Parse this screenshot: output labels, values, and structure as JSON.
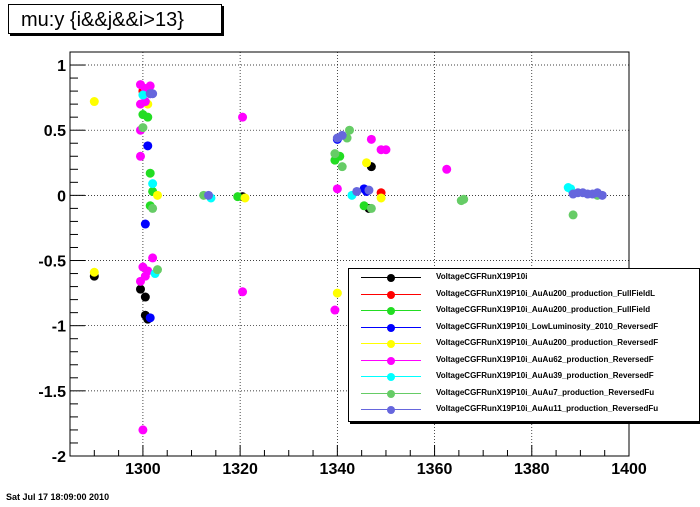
{
  "chart_data": {
    "type": "scatter",
    "title": "mu:y  {i&&j&&i>13}",
    "xlabel": "",
    "ylabel": "",
    "xlim": [
      1285,
      1400
    ],
    "ylim": [
      -2,
      1.1
    ],
    "grid": true,
    "legend_position": "right",
    "x_ticks": [
      {
        "value": 1300,
        "label": "1300"
      },
      {
        "value": 1320,
        "label": "1320"
      },
      {
        "value": 1340,
        "label": "1340"
      },
      {
        "value": 1360,
        "label": "1360"
      },
      {
        "value": 1380,
        "label": "1380"
      },
      {
        "value": 1400,
        "label": "1400"
      }
    ],
    "y_ticks": [
      {
        "value": 1,
        "label": "1"
      },
      {
        "value": 0.5,
        "label": "0.5"
      },
      {
        "value": 0,
        "label": "0"
      },
      {
        "value": -0.5,
        "label": "-0.5"
      },
      {
        "value": -1,
        "label": "-1"
      },
      {
        "value": -1.5,
        "label": "-1.5"
      },
      {
        "value": -2,
        "label": "-2"
      }
    ],
    "series": [
      {
        "name": "VoltageCGFRunX19P10i",
        "color": "#000000",
        "points": [
          [
            1290,
            -0.62
          ],
          [
            1299.5,
            -0.72
          ],
          [
            1300.5,
            -0.78
          ],
          [
            1301,
            -0.95
          ],
          [
            1300.5,
            -0.92
          ],
          [
            1320.5,
            -0.01
          ],
          [
            1347,
            0.22
          ],
          [
            1346.5,
            -0.1
          ]
        ]
      },
      {
        "name": "VoltageCGFRunX19P10i_AuAu200_production_FullFieldL",
        "color": "#ff0000",
        "points": [
          [
            1300,
            0.8
          ],
          [
            1349,
            0.02
          ]
        ]
      },
      {
        "name": "VoltageCGFRunX19P10i_AuAu200_production_FullField",
        "color": "#22dd22",
        "points": [
          [
            1301.5,
            0.17
          ],
          [
            1302,
            0.03
          ],
          [
            1300,
            0.62
          ],
          [
            1301,
            0.6
          ],
          [
            1301.5,
            -0.08
          ],
          [
            1319.5,
            -0.01
          ],
          [
            1339.5,
            0.27
          ],
          [
            1340.5,
            0.3
          ],
          [
            1345.5,
            -0.08
          ]
        ]
      },
      {
        "name": "VoltageCGFRunX19P10i_LowLuminosity_2010_ReversedF",
        "color": "#0000ff",
        "points": [
          [
            1301,
            0.38
          ],
          [
            1301.5,
            -0.94
          ],
          [
            1300.5,
            -0.22
          ],
          [
            1340,
            0.43
          ],
          [
            1346,
            0.03
          ],
          [
            1345.5,
            0.05
          ]
        ]
      },
      {
        "name": "VoltageCGFRunX19P10i_AuAu200_production_ReversedF",
        "color": "#ffff00",
        "points": [
          [
            1290,
            0.72
          ],
          [
            1290,
            -0.59
          ],
          [
            1301,
            0.7
          ],
          [
            1303,
            0.0
          ],
          [
            1321,
            -0.02
          ],
          [
            1340,
            -0.75
          ],
          [
            1346,
            0.25
          ],
          [
            1349,
            -0.02
          ]
        ]
      },
      {
        "name": "VoltageCGFRunX19P10i_AuAu62_production_ReversedF",
        "color": "#ff00ff",
        "points": [
          [
            1299.5,
            0.85
          ],
          [
            1300.5,
            0.82
          ],
          [
            1301.5,
            0.84
          ],
          [
            1299.5,
            0.7
          ],
          [
            1300.5,
            0.72
          ],
          [
            1301.5,
            0.78
          ],
          [
            1299.5,
            0.5
          ],
          [
            1299.5,
            0.3
          ],
          [
            1300,
            -0.55
          ],
          [
            1300.5,
            -0.62
          ],
          [
            1301,
            -0.58
          ],
          [
            1299.5,
            -0.66
          ],
          [
            1302,
            -0.48
          ],
          [
            1300,
            -1.8
          ],
          [
            1320.5,
            0.6
          ],
          [
            1320.5,
            -0.74
          ],
          [
            1339.5,
            -0.88
          ],
          [
            1347,
            0.43
          ],
          [
            1349,
            0.35
          ],
          [
            1350,
            0.35
          ],
          [
            1362.5,
            0.2
          ],
          [
            1340,
            0.05
          ]
        ]
      },
      {
        "name": "VoltageCGFRunX19P10i_AuAu39_production_ReversedF",
        "color": "#00ffff",
        "points": [
          [
            1300,
            0.77
          ],
          [
            1302,
            0.09
          ],
          [
            1302.5,
            -0.6
          ],
          [
            1314,
            -0.02
          ],
          [
            1343,
            0.0
          ],
          [
            1388,
            0.05
          ],
          [
            1387.5,
            0.06
          ]
        ]
      },
      {
        "name": "VoltageCGFRunX19P10i_AuAu7_production_ReversedFu",
        "color": "#66cc66",
        "points": [
          [
            1303,
            -0.57
          ],
          [
            1302,
            -0.1
          ],
          [
            1300,
            0.52
          ],
          [
            1312.5,
            0.0
          ],
          [
            1339.5,
            0.32
          ],
          [
            1341,
            0.22
          ],
          [
            1342.5,
            0.5
          ],
          [
            1342,
            0.44
          ],
          [
            1347,
            -0.1
          ],
          [
            1365.5,
            -0.04
          ],
          [
            1366,
            -0.03
          ],
          [
            1388.5,
            -0.15
          ],
          [
            1393.5,
            0.0
          ]
        ]
      },
      {
        "name": "VoltageCGFRunX19P10i_AuAu11_production_ReversedFu",
        "color": "#6666dd",
        "points": [
          [
            1301.5,
            0.78
          ],
          [
            1302,
            0.78
          ],
          [
            1313.5,
            0.0
          ],
          [
            1340,
            0.44
          ],
          [
            1341,
            0.46
          ],
          [
            1344,
            0.03
          ],
          [
            1346.5,
            0.04
          ],
          [
            1388.5,
            0.01
          ],
          [
            1389.5,
            0.02
          ],
          [
            1390.5,
            0.02
          ],
          [
            1391.5,
            0.01
          ],
          [
            1392.5,
            0.01
          ],
          [
            1393.5,
            0.02
          ],
          [
            1394.5,
            0.0
          ]
        ]
      }
    ]
  },
  "footer": {
    "timestamp": "Sat Jul 17 18:09:00 2010"
  }
}
